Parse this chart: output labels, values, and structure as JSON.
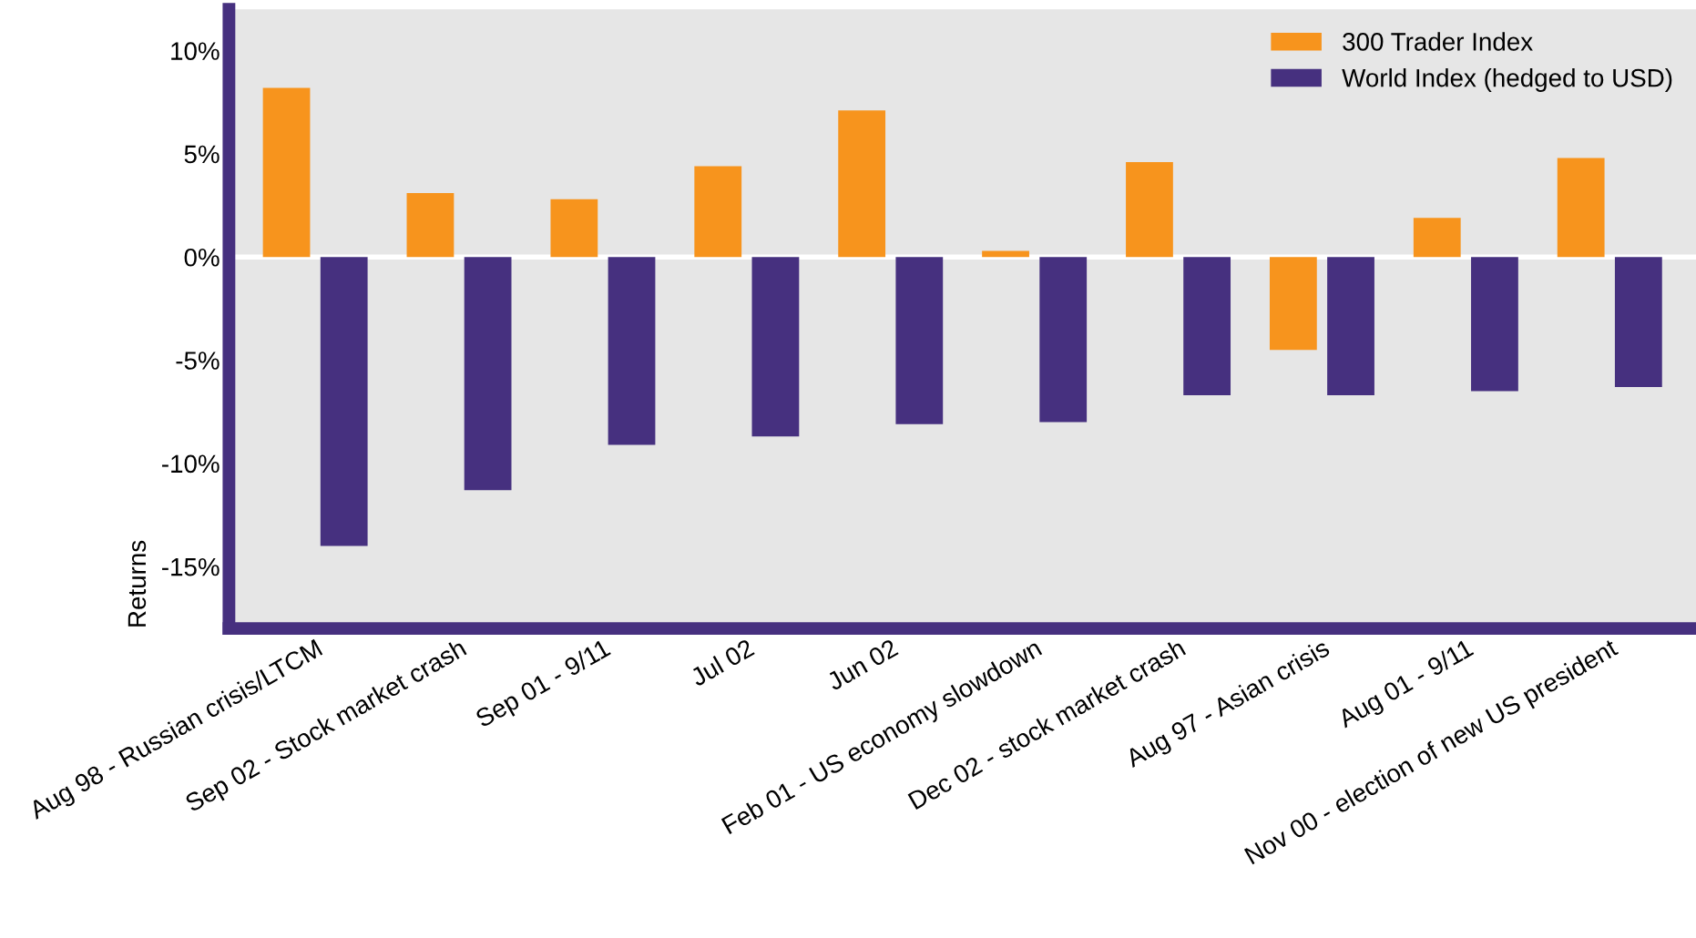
{
  "chart_data": {
    "type": "bar",
    "ylabel": "Returns",
    "categories": [
      "Aug 98 - Russian crisis/LTCM",
      "Sep 02 - Stock market crash",
      "Sep 01 - 9/11",
      "Jul 02",
      "Jun 02",
      "Feb 01 - US economy slowdown",
      "Dec 02 - stock market crash",
      "Aug 97 - Asian crisis",
      "Aug 01 - 9/11",
      "Nov 00 - election of new US president"
    ],
    "series": [
      {
        "name": "300 Trader Index",
        "color": "#f7941d",
        "values": [
          8.2,
          3.1,
          2.8,
          4.4,
          7.1,
          0.3,
          4.6,
          -4.5,
          1.9,
          4.8
        ]
      },
      {
        "name": "World Index (hedged to USD)",
        "color": "#46307f",
        "values": [
          -14.0,
          -11.3,
          -9.1,
          -8.7,
          -8.1,
          -8.0,
          -6.7,
          -6.7,
          -6.5,
          -6.3
        ]
      }
    ],
    "ylim": [
      -18,
      12
    ],
    "yticks": [
      {
        "value": 10,
        "label": "10%"
      },
      {
        "value": 5,
        "label": "5%"
      },
      {
        "value": 0,
        "label": "0%"
      },
      {
        "value": -5,
        "label": "-5%"
      },
      {
        "value": -10,
        "label": "-10%"
      },
      {
        "value": -15,
        "label": "-15%"
      }
    ],
    "ref_lines": [
      {
        "axis": "y",
        "value": 0,
        "color": "#ffffff"
      }
    ],
    "grid": false,
    "legend": "top right"
  }
}
